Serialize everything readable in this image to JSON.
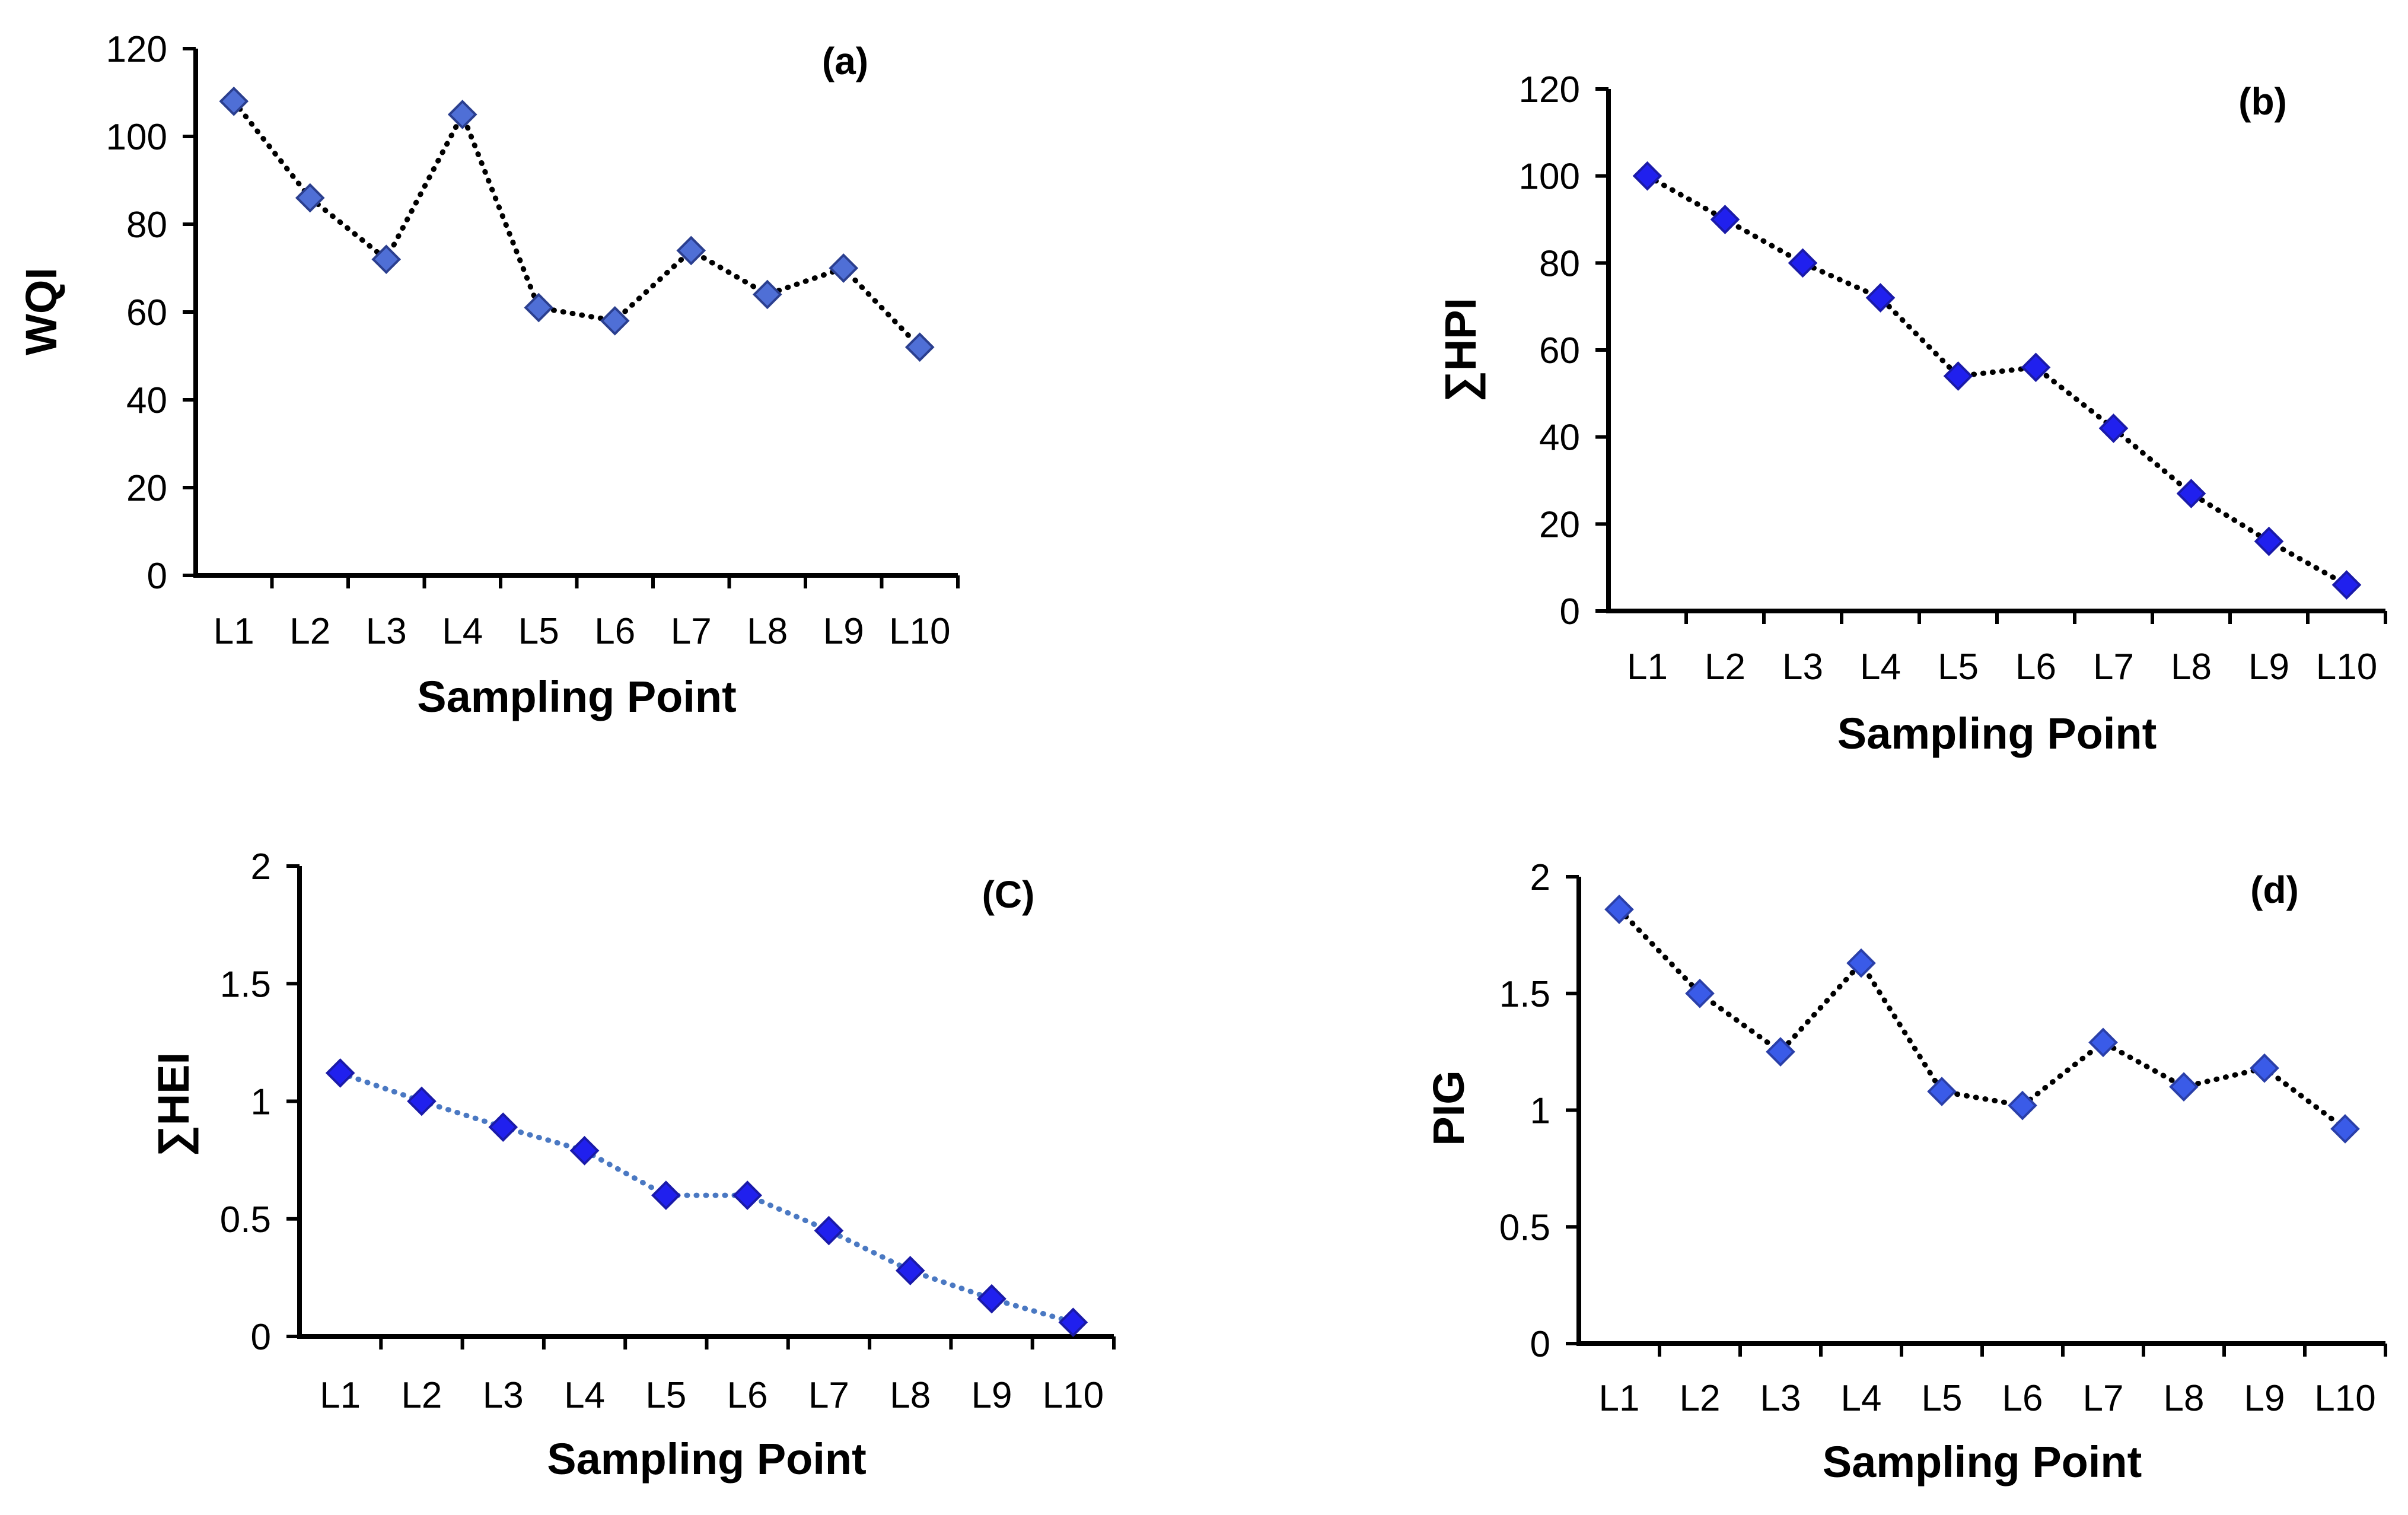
{
  "figure_title": "",
  "chart_data": [
    {
      "type": "line",
      "panel": "(a)",
      "title": "(a)",
      "xlabel": "Sampling Point",
      "ylabel": "WQI",
      "categories": [
        "L1",
        "L2",
        "L3",
        "L4",
        "L5",
        "L6",
        "L7",
        "L8",
        "L9",
        "L10"
      ],
      "values": [
        108,
        86,
        72,
        105,
        61,
        58,
        74,
        64,
        70,
        52
      ],
      "ylim": [
        0,
        120
      ],
      "yticks": [
        0,
        20,
        40,
        60,
        80,
        100,
        120
      ],
      "ytick_labels": [
        "0",
        "20",
        "40",
        "60",
        "80",
        "100",
        "120"
      ],
      "line_style": "dotted",
      "line_color": "#000000",
      "marker": "diamond",
      "marker_color": "#4f6fd6",
      "marker_edge": "#2b3f8f",
      "grid": false
    },
    {
      "type": "line",
      "panel": "(b)",
      "title": "(b)",
      "xlabel": "Sampling Point",
      "ylabel": "∑HPI",
      "categories": [
        "L1",
        "L2",
        "L3",
        "L4",
        "L5",
        "L6",
        "L7",
        "L8",
        "L9",
        "L10"
      ],
      "values": [
        100,
        90,
        80,
        72,
        54,
        56,
        42,
        27,
        16,
        6
      ],
      "ylim": [
        0,
        120
      ],
      "yticks": [
        0,
        20,
        40,
        60,
        80,
        100,
        120
      ],
      "ytick_labels": [
        "0",
        "20",
        "40",
        "60",
        "80",
        "100",
        "120"
      ],
      "line_style": "dotted",
      "line_color": "#000000",
      "marker": "diamond",
      "marker_color": "#2020ee",
      "marker_edge": "#1a1aa8",
      "grid": false
    },
    {
      "type": "line",
      "panel": "(C)",
      "title": "(C)",
      "xlabel": "Sampling Point",
      "ylabel": "∑HEI",
      "categories": [
        "L1",
        "L2",
        "L3",
        "L4",
        "L5",
        "L6",
        "L7",
        "L8",
        "L9",
        "L10"
      ],
      "values": [
        1.12,
        1.0,
        0.89,
        0.79,
        0.6,
        0.6,
        0.45,
        0.28,
        0.16,
        0.06
      ],
      "ylim": [
        0,
        2
      ],
      "yticks": [
        0,
        0.5,
        1,
        1.5,
        2
      ],
      "ytick_labels": [
        "0",
        "0.5",
        "1",
        "1.5",
        "2"
      ],
      "line_style": "dotted",
      "line_color": "#4a78c2",
      "marker": "diamond",
      "marker_color": "#2020ee",
      "marker_edge": "#1a1aa8",
      "grid": false
    },
    {
      "type": "line",
      "panel": "(d)",
      "title": "(d)",
      "xlabel": "Sampling Point",
      "ylabel": "PIG",
      "categories": [
        "L1",
        "L2",
        "L3",
        "L4",
        "L5",
        "L6",
        "L7",
        "L8",
        "L9",
        "L10"
      ],
      "values": [
        1.86,
        1.5,
        1.25,
        1.63,
        1.08,
        1.02,
        1.29,
        1.1,
        1.18,
        0.92
      ],
      "ylim": [
        0,
        2
      ],
      "yticks": [
        0,
        0.5,
        1,
        1.5,
        2
      ],
      "ytick_labels": [
        "0",
        "0.5",
        "1",
        "1.5",
        "2"
      ],
      "line_style": "dotted",
      "line_color": "#000000",
      "marker": "diamond",
      "marker_color": "#3a5be8",
      "marker_edge": "#2a3fa8",
      "grid": false
    }
  ]
}
